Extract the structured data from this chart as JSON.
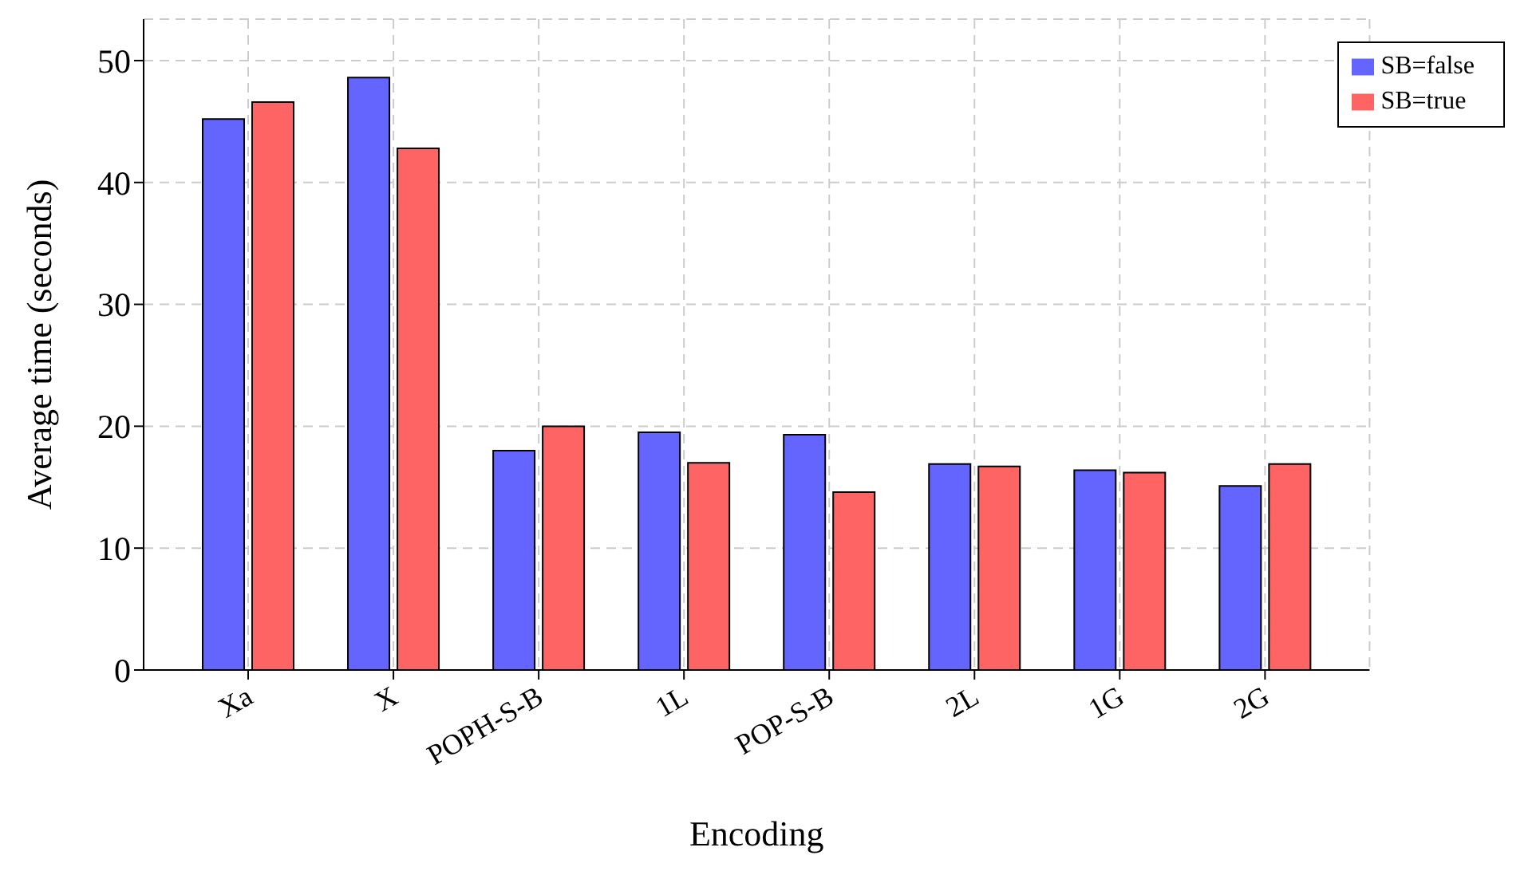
{
  "chart_data": {
    "type": "bar",
    "xlabel": "Encoding",
    "ylabel": "Average time (seconds)",
    "categories": [
      "Xa",
      "X",
      "POPH-S-B",
      "1L",
      "POP-S-B",
      "2L",
      "1G",
      "2G"
    ],
    "series": [
      {
        "name": "SB=false",
        "color": "#6464ff",
        "values": [
          45.2,
          48.6,
          18.0,
          19.5,
          19.3,
          16.9,
          16.4,
          15.1
        ]
      },
      {
        "name": "SB=true",
        "color": "#ff6464",
        "values": [
          46.6,
          42.8,
          20.0,
          17.0,
          14.6,
          16.7,
          16.2,
          16.9
        ]
      }
    ],
    "ylim": [
      0,
      53.4
    ],
    "yticks": [
      0,
      10,
      20,
      30,
      40,
      50
    ],
    "grid": true,
    "legend": "top right"
  }
}
